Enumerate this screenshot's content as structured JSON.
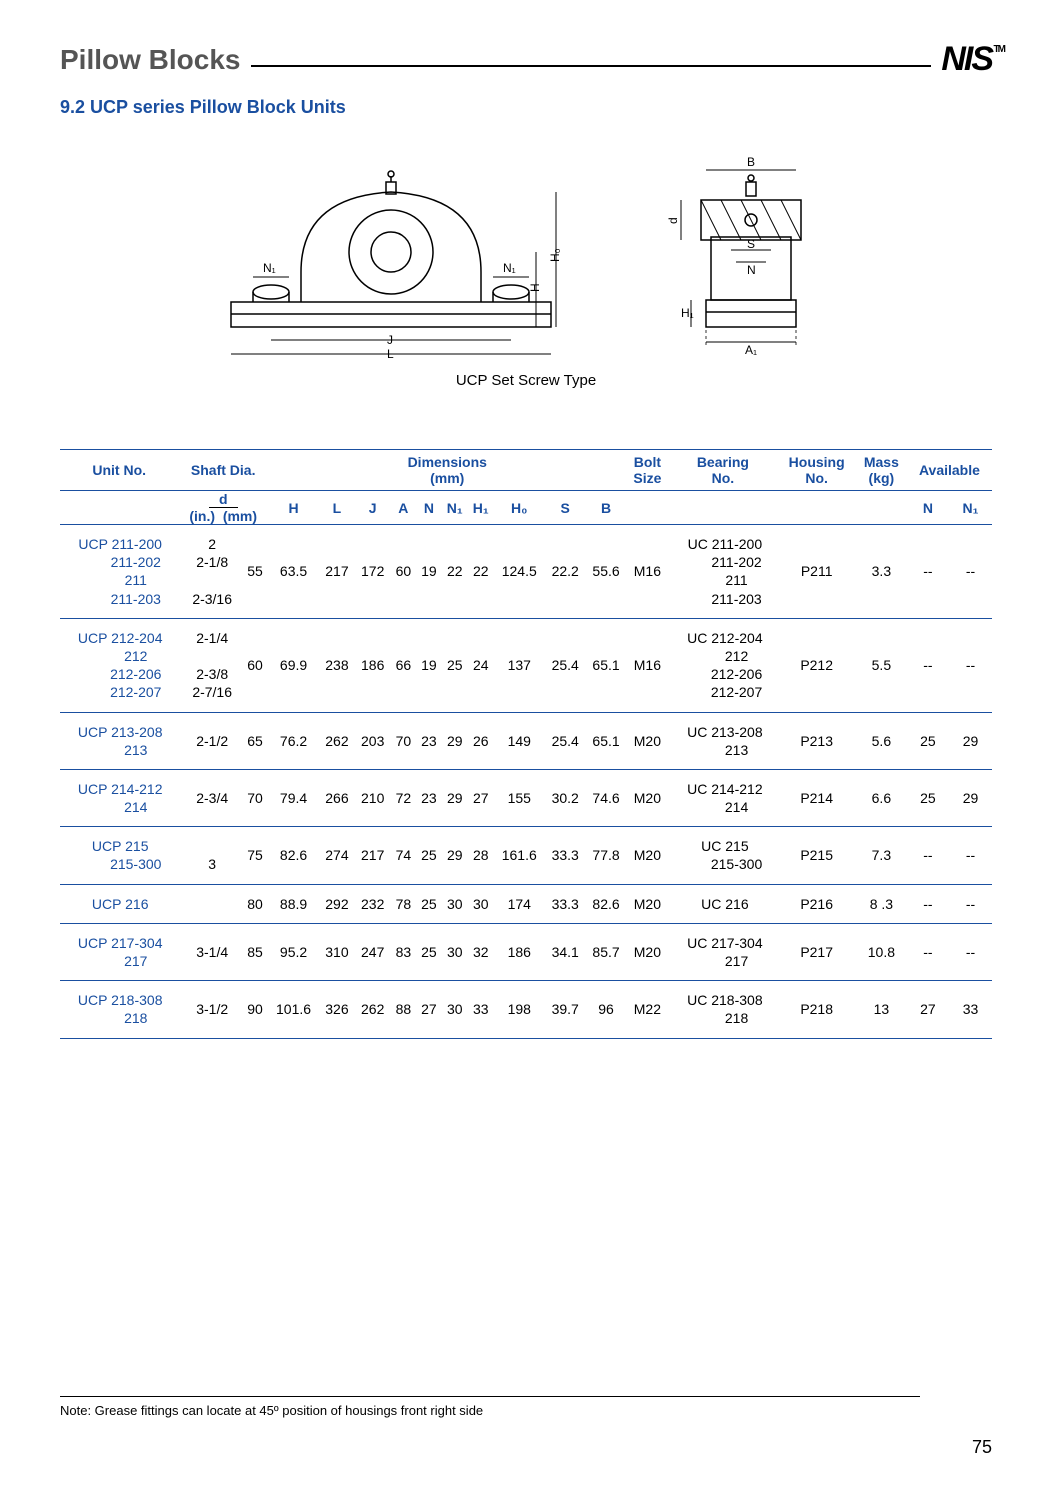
{
  "header": {
    "title": "Pillow Blocks",
    "logo": "NIS",
    "tm": "TM"
  },
  "subheading": "9.2  UCP series Pillow Block Units",
  "caption": "UCP Set Screw Type",
  "note": "Note: Grease fittings can locate at 45º position of housings front right side",
  "pagenum": "75",
  "diagram_left": {
    "L": "L",
    "J": "J",
    "N1l": "N₁",
    "N1r": "N₁",
    "H": "H",
    "H0": "H₀"
  },
  "diagram_right": {
    "B": "B",
    "d": "d",
    "S": "S",
    "N": "N",
    "H1": "H₁",
    "A1": "A₁"
  },
  "table": {
    "head1": [
      "Unit No.",
      "Shaft Dia.",
      "Dimensions\n(mm)",
      "Bolt\nSize",
      "Bearing\nNo.",
      "Housing\nNo.",
      "Mass\n(kg)",
      "Available"
    ],
    "head2_d": "d",
    "head2_d_in": "(in.)",
    "head2_d_mm": "(mm)",
    "head2_dims": [
      "H",
      "L",
      "J",
      "A",
      "N",
      "N₁",
      "H₁",
      "H₀",
      "S",
      "B"
    ],
    "head2_avail": [
      "N",
      "N₁"
    ],
    "rows": [
      {
        "unit": "UCP 211-200\n        211-202\n        211\n        211-203",
        "in": "2\n2-1/8\n\n2-3/16",
        "mm": "55",
        "H": "63.5",
        "L": "217",
        "J": "172",
        "A": "60",
        "N": "19",
        "N1": "22",
        "H1": "22",
        "H0": "124.5",
        "S": "22.2",
        "B": "55.6",
        "bolt": "M16",
        "bearing": "UC 211-200\n      211-202\n      211\n      211-203",
        "housing": "P211",
        "mass": "3.3",
        "avN": "--",
        "avN1": "--"
      },
      {
        "unit": "UCP 212-204\n        212\n        212-206\n        212-207",
        "in": "2-1/4\n\n2-3/8\n2-7/16",
        "mm": "60",
        "H": "69.9",
        "L": "238",
        "J": "186",
        "A": "66",
        "N": "19",
        "N1": "25",
        "H1": "24",
        "H0": "137",
        "S": "25.4",
        "B": "65.1",
        "bolt": "M16",
        "bearing": "UC 212-204\n      212\n      212-206\n      212-207",
        "housing": "P212",
        "mass": "5.5",
        "avN": "--",
        "avN1": "--"
      },
      {
        "unit": "UCP 213-208\n        213",
        "in": "2-1/2",
        "mm": "65",
        "H": "76.2",
        "L": "262",
        "J": "203",
        "A": "70",
        "N": "23",
        "N1": "29",
        "H1": "26",
        "H0": "149",
        "S": "25.4",
        "B": "65.1",
        "bolt": "M20",
        "bearing": "UC 213-208\n      213",
        "housing": "P213",
        "mass": "5.6",
        "avN": "25",
        "avN1": "29"
      },
      {
        "unit": "UCP 214-212\n        214",
        "in": "2-3/4",
        "mm": "70",
        "H": "79.4",
        "L": "266",
        "J": "210",
        "A": "72",
        "N": "23",
        "N1": "29",
        "H1": "27",
        "H0": "155",
        "S": "30.2",
        "B": "74.6",
        "bolt": "M20",
        "bearing": "UC 214-212\n      214",
        "housing": "P214",
        "mass": "6.6",
        "avN": "25",
        "avN1": "29"
      },
      {
        "unit": "UCP 215\n        215-300",
        "in": "\n3",
        "mm": "75",
        "H": "82.6",
        "L": "274",
        "J": "217",
        "A": "74",
        "N": "25",
        "N1": "29",
        "H1": "28",
        "H0": "161.6",
        "S": "33.3",
        "B": "77.8",
        "bolt": "M20",
        "bearing": "UC 215\n      215-300",
        "housing": "P215",
        "mass": "7.3",
        "avN": "--",
        "avN1": "--"
      },
      {
        "unit": "UCP 216",
        "in": "",
        "mm": "80",
        "H": "88.9",
        "L": "292",
        "J": "232",
        "A": "78",
        "N": "25",
        "N1": "30",
        "H1": "30",
        "H0": "174",
        "S": "33.3",
        "B": "82.6",
        "bolt": "M20",
        "bearing": "UC 216",
        "housing": "P216",
        "mass": "8 .3",
        "avN": "--",
        "avN1": "--"
      },
      {
        "unit": "UCP 217-304\n        217",
        "in": "3-1/4",
        "mm": "85",
        "H": "95.2",
        "L": "310",
        "J": "247",
        "A": "83",
        "N": "25",
        "N1": "30",
        "H1": "32",
        "H0": "186",
        "S": "34.1",
        "B": "85.7",
        "bolt": "M20",
        "bearing": "UC 217-304\n      217",
        "housing": "P217",
        "mass": "10.8",
        "avN": "--",
        "avN1": "--"
      },
      {
        "unit": "UCP 218-308\n        218",
        "in": "3-1/2",
        "mm": "90",
        "H": "101.6",
        "L": "326",
        "J": "262",
        "A": "88",
        "N": "27",
        "N1": "30",
        "H1": "33",
        "H0": "198",
        "S": "39.7",
        "B": "96",
        "bolt": "M22",
        "bearing": "UC 218-308\n      218",
        "housing": "P218",
        "mass": "13",
        "avN": "27",
        "avN1": "33"
      }
    ]
  }
}
